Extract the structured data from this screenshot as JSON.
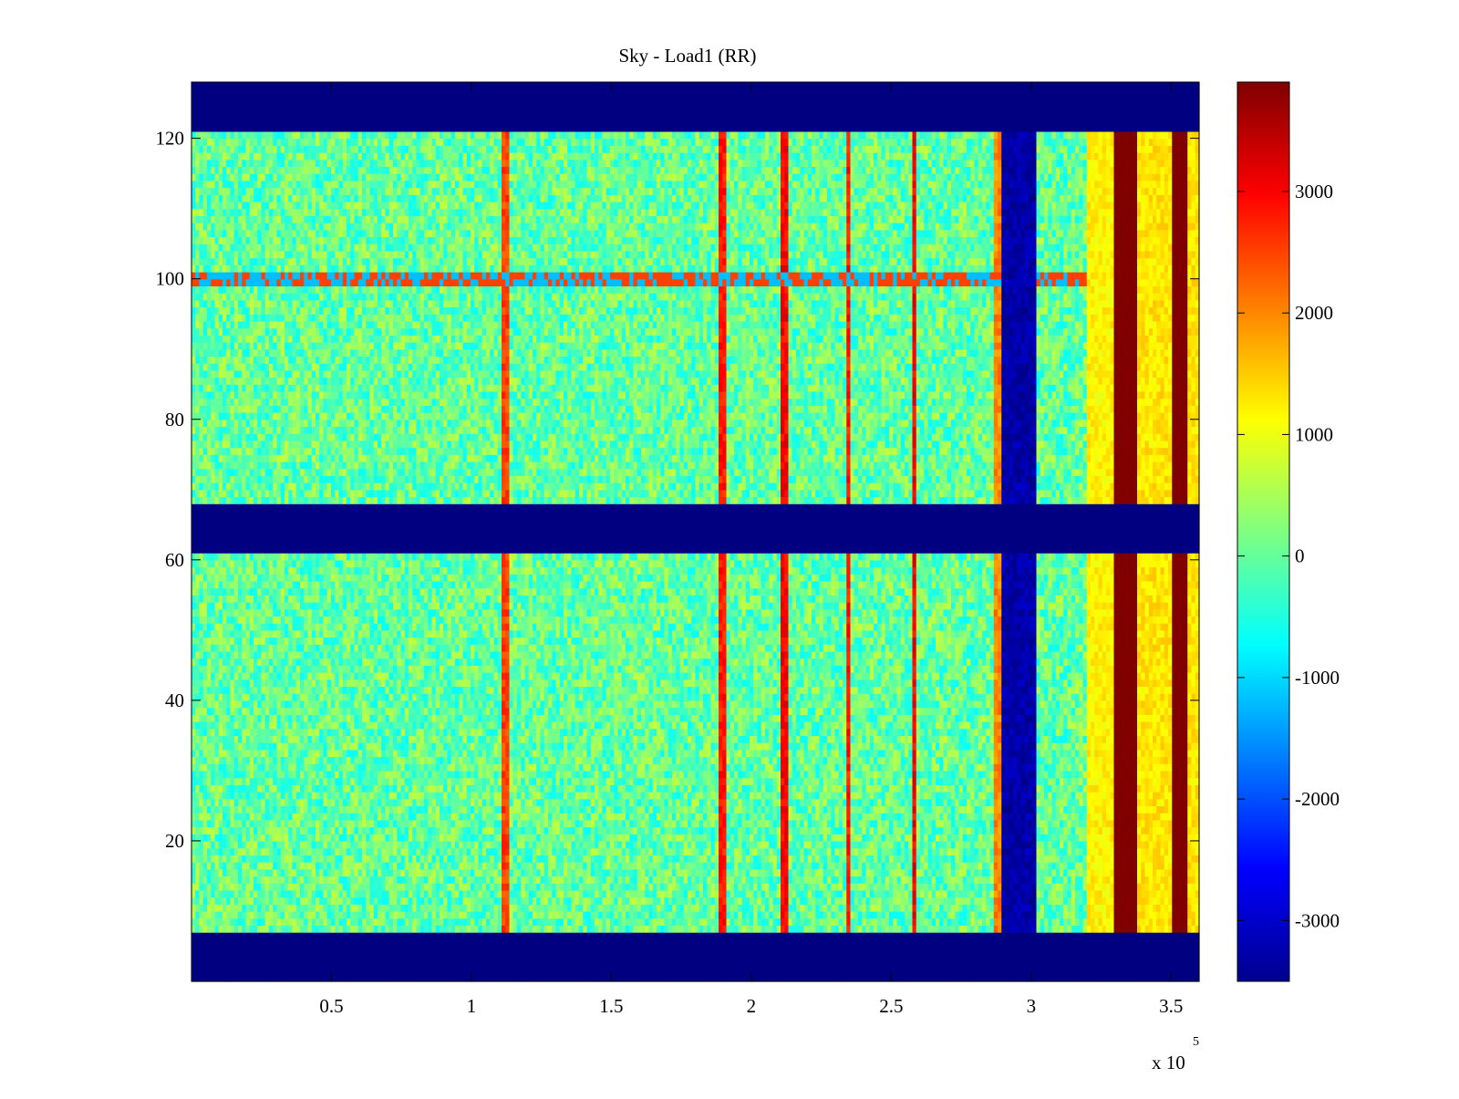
{
  "chart_data": {
    "type": "heatmap",
    "title": "Sky - Load1 (RR)",
    "xlabel": "",
    "ylabel": "",
    "x_multiplier": "x 10",
    "x_multiplier_exponent": "5",
    "xlim": [
      0,
      3.6
    ],
    "ylim": [
      0,
      128
    ],
    "x_ticks": [
      0.5,
      1,
      1.5,
      2,
      2.5,
      3,
      3.5
    ],
    "x_tick_labels": [
      "0.5",
      "1",
      "1.5",
      "2",
      "2.5",
      "3",
      "3.5"
    ],
    "y_ticks": [
      20,
      40,
      60,
      80,
      100,
      120
    ],
    "y_tick_labels": [
      "20",
      "40",
      "60",
      "80",
      "100",
      "120"
    ],
    "colormap": "jet",
    "clim": [
      -3500,
      3900
    ],
    "colorbar_ticks": [
      3000,
      2000,
      1000,
      0,
      -1000,
      -2000,
      -3000
    ],
    "colorbar_tick_labels": [
      "3000",
      "2000",
      "1000",
      "0",
      "-1000",
      "-2000",
      "-3000"
    ],
    "masked_row_bands": [
      [
        0,
        7.5
      ],
      [
        61.5,
        68.5
      ],
      [
        121.5,
        128
      ]
    ],
    "background_level": 0,
    "noise_amplitude": 700,
    "vertical_features": [
      {
        "x": 1.12,
        "value": 2500,
        "note": "narrow red stripe"
      },
      {
        "x": 1.9,
        "value": 2800,
        "note": "narrow red stripe"
      },
      {
        "x": 2.12,
        "value": 3000,
        "note": "narrow red stripe"
      },
      {
        "x": 2.35,
        "value": 2800,
        "note": "narrow red stripe"
      },
      {
        "x": 2.58,
        "value": 3000,
        "note": "narrow red stripe"
      },
      {
        "x": 2.88,
        "value": 2000,
        "note": "narrow orange stripe"
      }
    ],
    "wide_bands": [
      {
        "x0": 2.9,
        "x1": 3.02,
        "value": -3200,
        "note": "blue band"
      },
      {
        "x0": 3.2,
        "x1": 3.3,
        "value": 1200,
        "note": "yellow band"
      },
      {
        "x0": 3.3,
        "x1": 3.38,
        "value": 3900,
        "note": "dark red band"
      },
      {
        "x0": 3.38,
        "x1": 3.5,
        "value": 1300,
        "note": "yellow band"
      },
      {
        "x0": 3.5,
        "x1": 3.56,
        "value": 3900,
        "note": "dark red band"
      },
      {
        "x0": 3.56,
        "x1": 3.6,
        "value": 1300,
        "note": "yellow band"
      }
    ],
    "horizontal_features": [
      {
        "y": 100,
        "value": 2500,
        "note": "broken red/cyan line"
      }
    ]
  },
  "colors": {
    "jet_low": "#00008f",
    "jet_high": "#800000",
    "axis": "#000000",
    "background": "#ffffff"
  }
}
